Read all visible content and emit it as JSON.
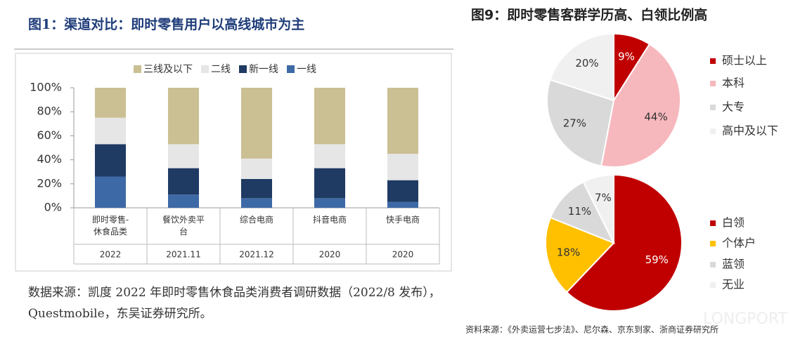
{
  "chart_data": [
    {
      "type": "bar",
      "stacked": true,
      "title": "图1：渠道对比：即时零售用户以高线城市为主",
      "categories": [
        "即时零售-休食品类",
        "餐饮外卖平台",
        "综合电商",
        "抖音电商",
        "快手电商"
      ],
      "periods": [
        "2022",
        "2021.11",
        "2021.12",
        "2020",
        "2020"
      ],
      "series": [
        {
          "name": "一线",
          "color": "#3d6aa6",
          "values": [
            26,
            11,
            8,
            8,
            5
          ]
        },
        {
          "name": "新一线",
          "color": "#1f3a63",
          "values": [
            27,
            22,
            16,
            25,
            18
          ]
        },
        {
          "name": "二线",
          "color": "#e6e6e6",
          "values": [
            22,
            20,
            17,
            20,
            22
          ]
        },
        {
          "name": "三线及以下",
          "color": "#cbbf94",
          "values": [
            25,
            47,
            59,
            47,
            55
          ]
        }
      ],
      "ylim": [
        0,
        100
      ],
      "yticks": [
        {
          "value": 0,
          "label": "0%"
        },
        {
          "value": 20,
          "label": "20%"
        },
        {
          "value": 40,
          "label": "40%"
        },
        {
          "value": 60,
          "label": "60%"
        },
        {
          "value": 80,
          "label": "80%"
        },
        {
          "value": 100,
          "label": "100%"
        }
      ],
      "source": "数据来源：凯度 2022 年即时零售休食品类消费者调研数据（2022/8 发布），Questmobile，东吴证券研究所。"
    },
    {
      "type": "pie",
      "title": "图9：即时零售客群学历高、白领比例高",
      "categories": [
        "硕士以上",
        "本科",
        "大专",
        "高中及以下"
      ],
      "colors": [
        "#c00000",
        "#f7b8bd",
        "#d9d9d9",
        "#f0f0f0"
      ],
      "values": [
        9,
        44,
        27,
        20
      ],
      "value_labels": [
        "9%",
        "44%",
        "27%",
        "20%"
      ]
    },
    {
      "type": "pie",
      "categories": [
        "白领",
        "个体户",
        "蓝领",
        "无业"
      ],
      "colors": [
        "#c00000",
        "#ffc000",
        "#d9d9d9",
        "#f0f0f0"
      ],
      "values": [
        59,
        18,
        11,
        7
      ],
      "value_labels": [
        "59%",
        "18%",
        "11%",
        "7%"
      ],
      "source": "资料来源：《外卖运营七步法》、尼尔森、京东到家、浙商证券研究所",
      "watermark": "LONGPORT"
    }
  ]
}
